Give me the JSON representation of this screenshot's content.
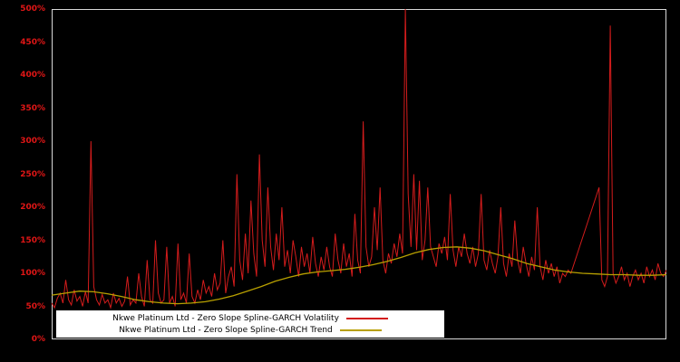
{
  "figure": {
    "background": "#000000",
    "frame_color": "#d9d9d9",
    "legend_background": "#ffffff"
  },
  "chart_data": {
    "type": "line",
    "title": "",
    "xlabel": "",
    "ylabel": "",
    "grid": false,
    "legend_position": "bottom-center",
    "ylim": [
      0,
      500
    ],
    "axis_label_color": "#e01616",
    "ytick_values": [
      0,
      50,
      100,
      150,
      200,
      250,
      300,
      350,
      400,
      450,
      500
    ],
    "ytick_labels": [
      "0%",
      "50%",
      "100%",
      "150%",
      "200%",
      "250%",
      "300%",
      "350%",
      "400%",
      "450%",
      "500%"
    ],
    "series": [
      {
        "name": "Nkwe Platinum Ltd - Zero Slope Spline-GARCH Volatility",
        "color": "#d41c1c",
        "data_name": "volatility-line",
        "values": [
          55,
          48,
          62,
          70,
          55,
          90,
          60,
          52,
          75,
          58,
          65,
          50,
          72,
          55,
          300,
          80,
          60,
          52,
          68,
          55,
          60,
          48,
          70,
          55,
          62,
          50,
          58,
          95,
          52,
          60,
          55,
          100,
          65,
          50,
          120,
          60,
          55,
          150,
          70,
          55,
          60,
          140,
          55,
          65,
          50,
          145,
          60,
          70,
          55,
          130,
          65,
          55,
          75,
          60,
          90,
          70,
          80,
          65,
          100,
          75,
          85,
          150,
          70,
          95,
          110,
          80,
          250,
          120,
          90,
          160,
          100,
          210,
          130,
          95,
          280,
          150,
          110,
          230,
          140,
          105,
          160,
          120,
          200,
          110,
          135,
          100,
          150,
          125,
          95,
          140,
          110,
          130,
          100,
          155,
          115,
          95,
          125,
          105,
          140,
          110,
          95,
          160,
          120,
          100,
          145,
          110,
          130,
          95,
          190,
          120,
          100,
          330,
          140,
          110,
          125,
          200,
          135,
          230,
          120,
          100,
          130,
          115,
          145,
          125,
          160,
          130,
          500,
          220,
          140,
          250,
          135,
          240,
          120,
          150,
          230,
          140,
          125,
          110,
          145,
          130,
          155,
          120,
          220,
          135,
          110,
          140,
          125,
          160,
          130,
          115,
          140,
          110,
          130,
          220,
          120,
          105,
          135,
          115,
          100,
          125,
          200,
          115,
          95,
          130,
          110,
          180,
          120,
          100,
          140,
          115,
          95,
          125,
          105,
          200,
          110,
          90,
          120,
          100,
          115,
          95,
          110,
          85,
          100,
          95,
          105,
          100,
          113,
          126,
          139,
          152,
          165,
          178,
          191,
          204,
          217,
          230,
          90,
          80,
          95,
          475,
          100,
          85,
          95,
          110,
          90,
          100,
          80,
          95,
          105,
          90,
          100,
          85,
          110,
          95,
          105,
          90,
          115,
          100,
          95,
          105
        ]
      },
      {
        "name": "Nkwe Platinum Ltd - Zero Slope Spline-GARCH Trend",
        "color": "#b8a000",
        "data_name": "trend-line",
        "values": [
          67,
          70,
          73,
          72,
          69,
          65,
          60,
          57,
          55,
          54,
          55,
          57,
          61,
          66,
          73,
          80,
          88,
          94,
          99,
          102,
          104,
          106,
          109,
          113,
          118,
          124,
          131,
          136,
          139,
          140,
          138,
          134,
          128,
          122,
          115,
          110,
          105,
          102,
          100,
          99,
          98,
          98,
          97,
          97,
          98
        ]
      }
    ]
  }
}
